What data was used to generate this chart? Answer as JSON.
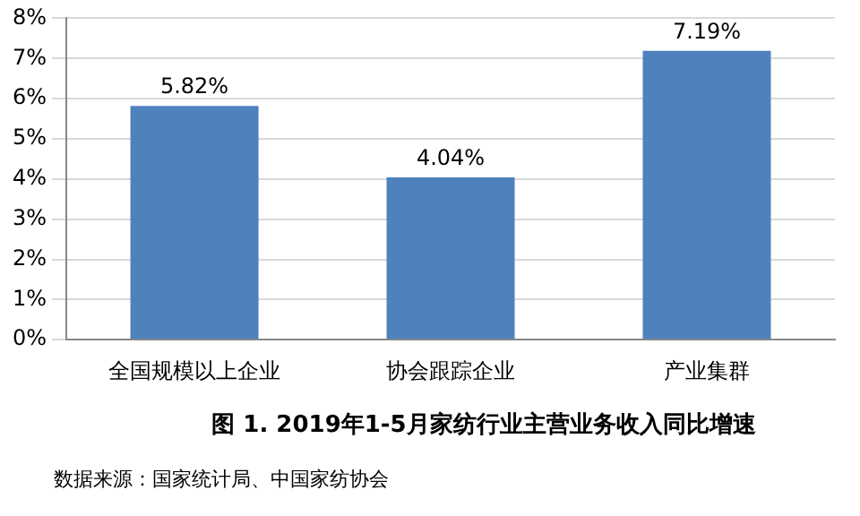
{
  "chart_data": {
    "type": "bar",
    "title": "图 1. 2019年1-5月家纺行业主营业务收入同比增速",
    "categories": [
      "全国规模以上企业",
      "协会跟踪企业",
      "产业集群"
    ],
    "values": [
      5.82,
      4.04,
      7.19
    ],
    "value_labels": [
      "5.82%",
      "4.04%",
      "7.19%"
    ],
    "color": "#4f81bd",
    "ylim": [
      0,
      8
    ],
    "yticks": [
      {
        "value": 0,
        "label": "0%"
      },
      {
        "value": 1,
        "label": "1%"
      },
      {
        "value": 2,
        "label": "2%"
      },
      {
        "value": 3,
        "label": "3%"
      },
      {
        "value": 4,
        "label": "4%"
      },
      {
        "value": 5,
        "label": "5%"
      },
      {
        "value": 6,
        "label": "6%"
      },
      {
        "value": 7,
        "label": "7%"
      },
      {
        "value": 8,
        "label": "8%"
      }
    ],
    "grid": "y",
    "legend": false,
    "annotations": [
      "数据来源：国家统计局、中国家纺协会"
    ]
  }
}
